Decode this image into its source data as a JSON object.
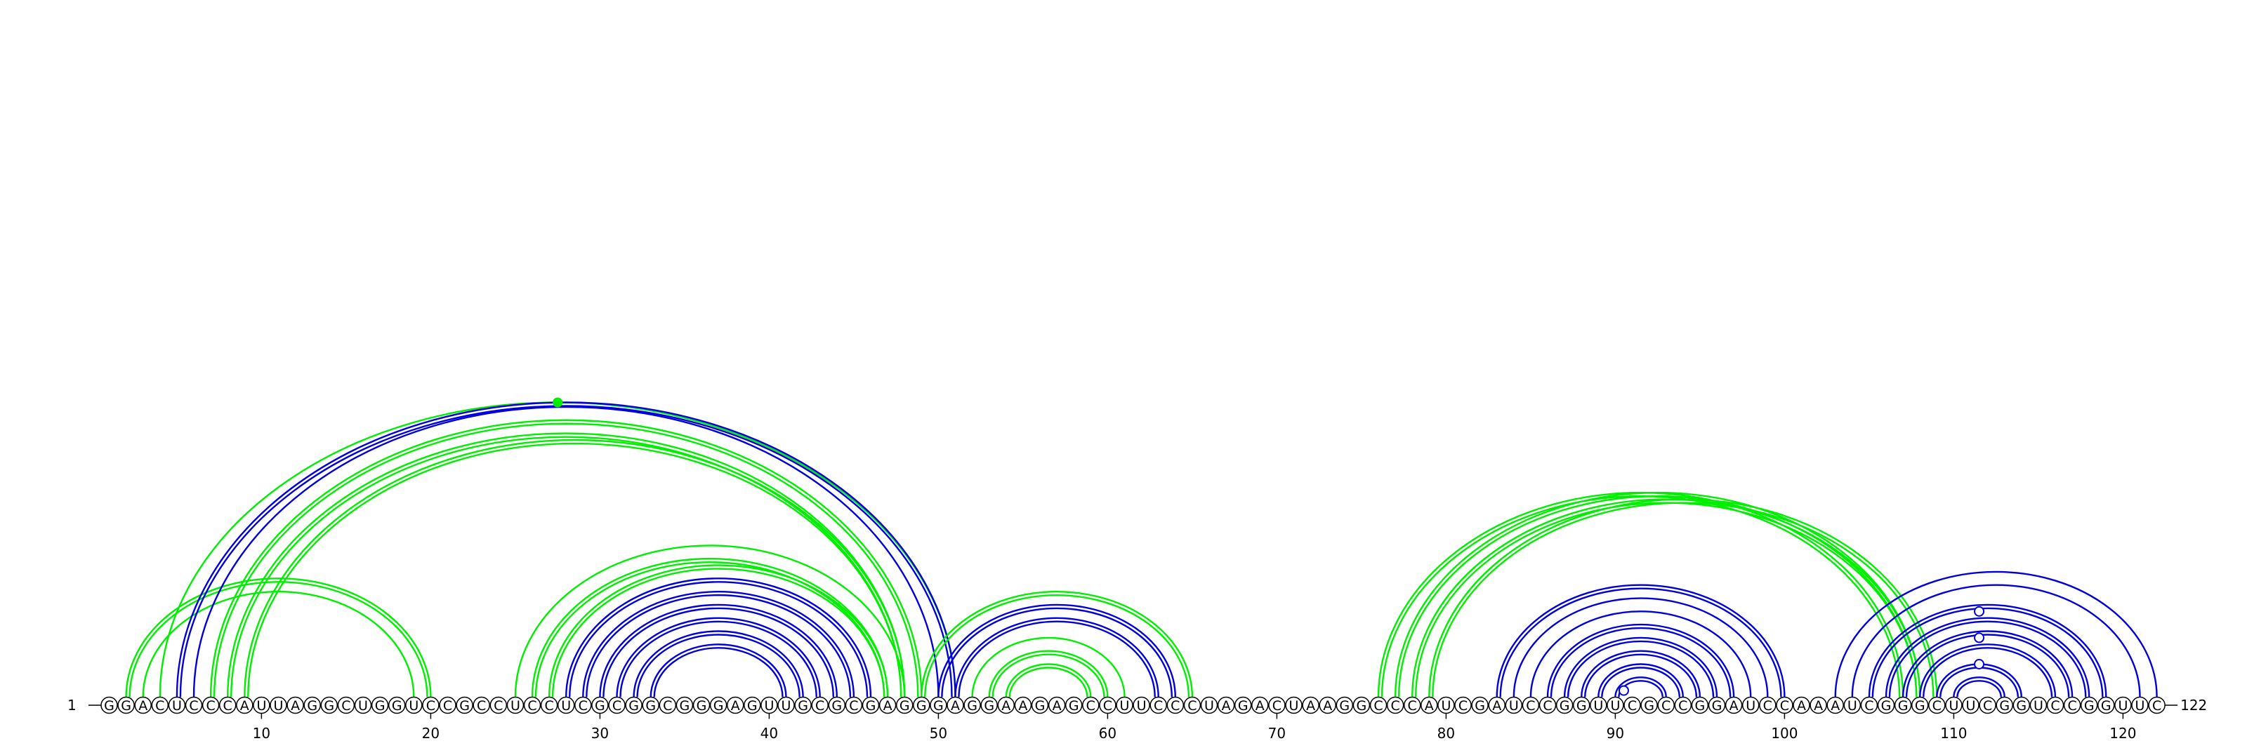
{
  "chart_data": {
    "type": "arc-diagram",
    "sequence": "GGACUCCCAUUAGGCUGGUCCGCCUCCUCGCGGCGGGAGUUGCGCGAGGGAGGAAGAGCCUUCCCUAGACUAAGGCCCAUCGAUCCGGUUCGCCGGAUCCAAAUCGGGCUUCGGUCCGGUUC",
    "length": 122,
    "start_label": "1",
    "end_label": "122",
    "x_ticks": [
      10,
      20,
      30,
      40,
      50,
      60,
      70,
      80,
      90,
      100,
      110,
      120
    ],
    "colors": {
      "green": "#00ee00",
      "blue": "#0000dd"
    },
    "pairs": [
      {
        "i": 2,
        "j": 20,
        "color": "green",
        "style": "double"
      },
      {
        "i": 3,
        "j": 19,
        "color": "green",
        "style": "single"
      },
      {
        "i": 4,
        "j": 51,
        "color": "green",
        "style": "single"
      },
      {
        "i": 5,
        "j": 51,
        "color": "blue",
        "style": "double"
      },
      {
        "i": 6,
        "j": 50,
        "color": "blue",
        "style": "single"
      },
      {
        "i": 7,
        "j": 49,
        "color": "green",
        "style": "double"
      },
      {
        "i": 8,
        "j": 48,
        "color": "green",
        "style": "double"
      },
      {
        "i": 9,
        "j": 48,
        "color": "green",
        "style": "double"
      },
      {
        "i": 25,
        "j": 48,
        "color": "green",
        "style": "single"
      },
      {
        "i": 26,
        "j": 47,
        "color": "green",
        "style": "double"
      },
      {
        "i": 27,
        "j": 47,
        "color": "green",
        "style": "double"
      },
      {
        "i": 28,
        "j": 46,
        "color": "blue",
        "style": "double"
      },
      {
        "i": 29,
        "j": 45,
        "color": "blue",
        "style": "double"
      },
      {
        "i": 30,
        "j": 44,
        "color": "blue",
        "style": "double"
      },
      {
        "i": 31,
        "j": 43,
        "color": "blue",
        "style": "double"
      },
      {
        "i": 32,
        "j": 42,
        "color": "blue",
        "style": "double"
      },
      {
        "i": 33,
        "j": 41,
        "color": "blue",
        "style": "double"
      },
      {
        "i": 49,
        "j": 65,
        "color": "green",
        "style": "double"
      },
      {
        "i": 50,
        "j": 64,
        "color": "blue",
        "style": "double"
      },
      {
        "i": 51,
        "j": 63,
        "color": "blue",
        "style": "double"
      },
      {
        "i": 52,
        "j": 61,
        "color": "green",
        "style": "single"
      },
      {
        "i": 53,
        "j": 60,
        "color": "green",
        "style": "double"
      },
      {
        "i": 54,
        "j": 59,
        "color": "green",
        "style": "double"
      },
      {
        "i": 76,
        "j": 107,
        "color": "green",
        "style": "double"
      },
      {
        "i": 77,
        "j": 108,
        "color": "green",
        "style": "double"
      },
      {
        "i": 78,
        "j": 108,
        "color": "green",
        "style": "double"
      },
      {
        "i": 79,
        "j": 109,
        "color": "green",
        "style": "double"
      },
      {
        "i": 83,
        "j": 100,
        "color": "blue",
        "style": "double"
      },
      {
        "i": 84,
        "j": 99,
        "color": "blue",
        "style": "single"
      },
      {
        "i": 85,
        "j": 98,
        "color": "blue",
        "style": "single"
      },
      {
        "i": 86,
        "j": 97,
        "color": "blue",
        "style": "double"
      },
      {
        "i": 87,
        "j": 96,
        "color": "blue",
        "style": "double"
      },
      {
        "i": 88,
        "j": 95,
        "color": "blue",
        "style": "double"
      },
      {
        "i": 89,
        "j": 94,
        "color": "blue",
        "style": "double"
      },
      {
        "i": 90,
        "j": 93,
        "color": "blue",
        "style": "double"
      },
      {
        "i": 103,
        "j": 122,
        "color": "blue",
        "style": "single"
      },
      {
        "i": 104,
        "j": 121,
        "color": "blue",
        "style": "single"
      },
      {
        "i": 105,
        "j": 119,
        "color": "blue",
        "style": "double"
      },
      {
        "i": 106,
        "j": 118,
        "color": "blue",
        "style": "double"
      },
      {
        "i": 107,
        "j": 117,
        "color": "blue",
        "style": "double"
      },
      {
        "i": 108,
        "j": 116,
        "color": "blue",
        "style": "double"
      },
      {
        "i": 109,
        "j": 114,
        "color": "blue",
        "style": "double"
      },
      {
        "i": 110,
        "j": 113,
        "color": "blue",
        "style": "double"
      }
    ],
    "markers": [
      {
        "i": 4,
        "j": 51,
        "color": "green",
        "filled": true
      },
      {
        "i": 90,
        "j": 91,
        "color": "blue",
        "filled": false
      },
      {
        "i": 109,
        "j": 114,
        "color": "blue",
        "filled": false
      },
      {
        "i": 107,
        "j": 116,
        "color": "blue",
        "filled": false
      },
      {
        "i": 105,
        "j": 118,
        "color": "blue",
        "filled": false
      }
    ]
  }
}
